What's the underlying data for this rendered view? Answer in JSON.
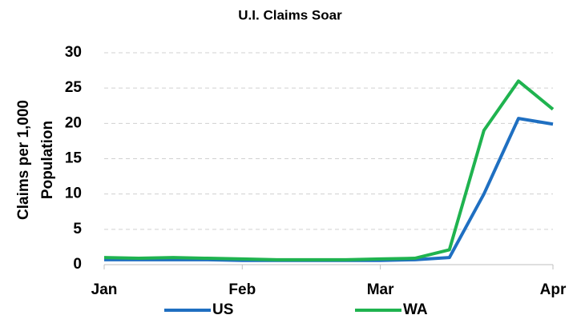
{
  "chart_data": {
    "type": "line",
    "title": "U.I. Claims Soar",
    "y_label": [
      "Claims per 1,000",
      "Population"
    ],
    "categories": [
      "Jan",
      null,
      null,
      null,
      "Feb",
      null,
      null,
      null,
      "Mar",
      null,
      null,
      null,
      null,
      "Apr"
    ],
    "series": [
      {
        "name": "US",
        "color": "#1f6fc1",
        "values": [
          0.7,
          0.7,
          0.7,
          0.7,
          0.6,
          0.6,
          0.6,
          0.6,
          0.6,
          0.7,
          1.0,
          10,
          20.7,
          19.9
        ]
      },
      {
        "name": "WA",
        "color": "#1fb34f",
        "values": [
          1.0,
          0.9,
          1.0,
          0.9,
          0.8,
          0.7,
          0.7,
          0.7,
          0.8,
          0.9,
          2.1,
          19,
          26,
          22
        ]
      }
    ],
    "ylim": [
      0,
      30
    ],
    "yticks": [
      0,
      5,
      10,
      15,
      20,
      25,
      30
    ],
    "grid": true,
    "legend": "bottom"
  }
}
